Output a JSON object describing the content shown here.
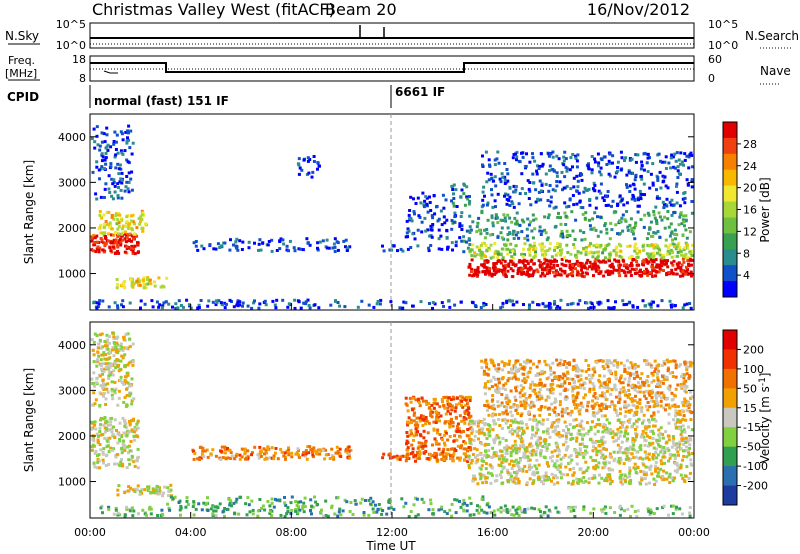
{
  "header": {
    "station": "Christmas Valley West (fitACF)",
    "beam": "Beam 20",
    "date": "16/Nov/2012"
  },
  "strip_panels": {
    "nsky_label": "N.Sky",
    "nsky_ticks": [
      "10^5",
      "10^0"
    ],
    "nsearch_label": "N.Search",
    "nsearch_ticks": [
      "10^5",
      "10^0"
    ],
    "freq_label_line1": "Freq.",
    "freq_label_line2": "[MHz]",
    "freq_ticks": [
      "18",
      "8"
    ],
    "nave_label": "Nave",
    "nave_ticks": [
      "60",
      "0"
    ],
    "cpid_label": "CPID",
    "cpid_segments": [
      {
        "text": "normal (fast) 151 IF",
        "start_hour": 0
      },
      {
        "text": "6661 IF",
        "start_hour": 12
      }
    ]
  },
  "chart_data": [
    {
      "type": "heatmap",
      "panel": "power",
      "ylabel": "Slant Range [km]",
      "ylim": [
        200,
        4500
      ],
      "yticks": [
        "1000",
        "2000",
        "3000",
        "4000"
      ],
      "xlim_hours": [
        0,
        24
      ],
      "colorbar_label": "Power [dB]",
      "colorbar_ticks": [
        "28",
        "24",
        "20",
        "16",
        "12",
        "8",
        "4"
      ],
      "colors": [
        "#0000ff",
        "#1050c8",
        "#2a8c8c",
        "#38a050",
        "#70c040",
        "#a8d838",
        "#f0e830",
        "#f8b800",
        "#f88000",
        "#f04010",
        "#e00000"
      ],
      "regions": [
        {
          "t0": 0.0,
          "t1": 2.0,
          "r0": 1400,
          "r1": 1900,
          "level": 0.95
        },
        {
          "t0": 0.3,
          "t1": 2.3,
          "r0": 1800,
          "r1": 2400,
          "level": 0.6
        },
        {
          "t0": 0.0,
          "t1": 1.8,
          "r0": 2600,
          "r1": 4300,
          "level": 0.12
        },
        {
          "t0": 1.0,
          "t1": 3.2,
          "r0": 650,
          "r1": 950,
          "level": 0.6
        },
        {
          "t0": 4.0,
          "t1": 10.5,
          "r0": 1450,
          "r1": 1800,
          "level": 0.1
        },
        {
          "t0": 8.2,
          "t1": 9.2,
          "r0": 3000,
          "r1": 3600,
          "level": 0.08
        },
        {
          "t0": 11.5,
          "t1": 14.5,
          "r0": 1450,
          "r1": 1650,
          "level": 0.1
        },
        {
          "t0": 12.5,
          "t1": 14.3,
          "r0": 1700,
          "r1": 2800,
          "level": 0.08
        },
        {
          "t0": 14.3,
          "t1": 15.2,
          "r0": 1400,
          "r1": 3000,
          "level": 0.2
        },
        {
          "t0": 15.0,
          "t1": 24.0,
          "r0": 900,
          "r1": 1350,
          "level": 1.0
        },
        {
          "t0": 15.0,
          "t1": 24.0,
          "r0": 1300,
          "r1": 1700,
          "level": 0.5
        },
        {
          "t0": 15.0,
          "t1": 24.0,
          "r0": 1700,
          "r1": 2400,
          "level": 0.3
        },
        {
          "t0": 15.5,
          "t1": 24.0,
          "r0": 2400,
          "r1": 3700,
          "level": 0.12
        },
        {
          "t0": 0.0,
          "t1": 24.0,
          "r0": 200,
          "r1": 450,
          "level": 0.1
        }
      ]
    },
    {
      "type": "heatmap",
      "panel": "velocity",
      "ylabel": "Slant Range [km]",
      "ylim": [
        200,
        4500
      ],
      "yticks": [
        "1000",
        "2000",
        "3000",
        "4000"
      ],
      "xlim_hours": [
        0,
        24
      ],
      "xlabel": "Time UT",
      "xticks": [
        "00:00",
        "04:00",
        "08:00",
        "12:00",
        "16:00",
        "20:00",
        "00:00"
      ],
      "colorbar_label": "Velocity [m s^-1]",
      "colorbar_ticks": [
        "200",
        "100",
        "50",
        "15",
        "-15",
        "-50",
        "-100",
        "-200"
      ],
      "colors": [
        "#1e3ca0",
        "#2a70b0",
        "#30a050",
        "#80d040",
        "#c8c8c0",
        "#f0a000",
        "#f07000",
        "#f03000",
        "#e00000"
      ],
      "regions": [
        {
          "t0": 0.0,
          "t1": 2.0,
          "r0": 1250,
          "r1": 2450,
          "level": 0.5
        },
        {
          "t0": 0.0,
          "t1": 1.8,
          "r0": 2600,
          "r1": 4300,
          "level": 0.5
        },
        {
          "t0": 1.0,
          "t1": 3.3,
          "r0": 650,
          "r1": 950,
          "level": 0.5
        },
        {
          "t0": 4.0,
          "t1": 10.5,
          "r0": 1450,
          "r1": 1800,
          "level": 0.68
        },
        {
          "t0": 11.5,
          "t1": 14.5,
          "r0": 1450,
          "r1": 1650,
          "level": 0.72
        },
        {
          "t0": 12.5,
          "t1": 15.2,
          "r0": 1400,
          "r1": 2900,
          "level": 0.72
        },
        {
          "t0": 15.0,
          "t1": 24.0,
          "r0": 900,
          "r1": 2400,
          "level": 0.5
        },
        {
          "t0": 15.5,
          "t1": 24.0,
          "r0": 2400,
          "r1": 3700,
          "level": 0.6
        },
        {
          "t0": 3.0,
          "t1": 16.0,
          "r0": 200,
          "r1": 700,
          "level": 0.3
        },
        {
          "t0": 0.0,
          "t1": 3.0,
          "r0": 200,
          "r1": 500,
          "level": 0.35
        },
        {
          "t0": 16.0,
          "t1": 24.0,
          "r0": 200,
          "r1": 500,
          "level": 0.35
        }
      ]
    }
  ]
}
